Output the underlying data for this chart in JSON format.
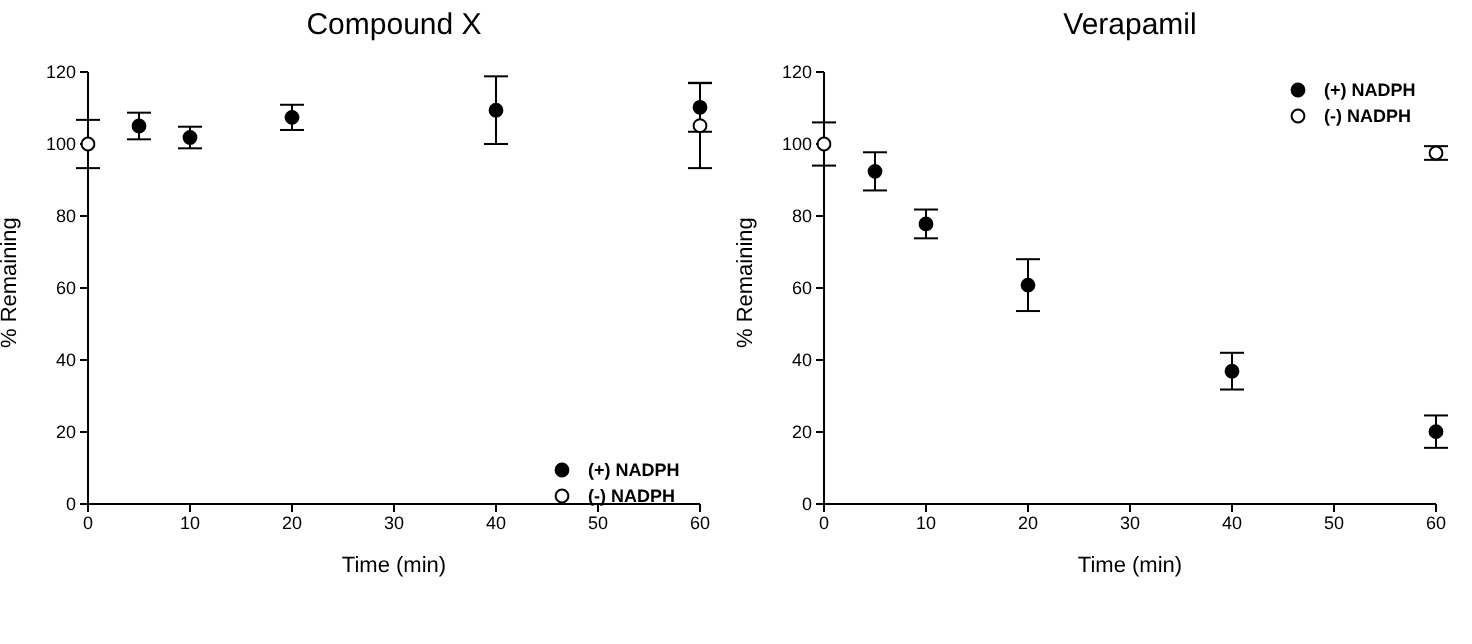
{
  "chart_data": [
    {
      "type": "scatter",
      "title": "Compound X",
      "xlabel": "Time (min)",
      "ylabel": "% Remaining",
      "x": [
        0,
        5,
        10,
        20,
        40,
        60
      ],
      "xlim": [
        0,
        60
      ],
      "xticks": [
        0,
        10,
        20,
        30,
        40,
        50,
        60
      ],
      "ylim": [
        0,
        120
      ],
      "yticks": [
        0,
        20,
        40,
        60,
        80,
        100,
        120
      ],
      "grid": false,
      "legend": "bottom right",
      "marker": "circle",
      "series": [
        {
          "name": "(+) NADPH",
          "color": "#000000",
          "values": [
            null,
            105,
            101.8,
            107.4,
            109.4,
            110.2
          ],
          "errors": [
            null,
            3.7,
            3,
            3.5,
            9.4,
            6.8
          ]
        },
        {
          "name": "(-) NADPH",
          "color": "#ffffff",
          "values": [
            100,
            null,
            null,
            null,
            null,
            105.1
          ],
          "errors": [
            6.7,
            null,
            null,
            null,
            null,
            11.8
          ]
        }
      ]
    },
    {
      "type": "scatter",
      "title": "Verapamil",
      "xlabel": "Time (min)",
      "ylabel": "% Remaining",
      "x": [
        0,
        5,
        10,
        20,
        40,
        60
      ],
      "xlim": [
        0,
        60
      ],
      "xticks": [
        0,
        10,
        20,
        30,
        40,
        50,
        60
      ],
      "ylim": [
        0,
        120
      ],
      "yticks": [
        0,
        20,
        40,
        60,
        80,
        100,
        120
      ],
      "grid": false,
      "legend": "top right",
      "marker": "circle",
      "series": [
        {
          "name": "(+) NADPH",
          "color": "#000000",
          "values": [
            null,
            92.4,
            77.8,
            60.8,
            36.9,
            20.1
          ],
          "errors": [
            null,
            5.3,
            4,
            7.2,
            5.1,
            4.5
          ]
        },
        {
          "name": "(-) NADPH",
          "color": "#ffffff",
          "values": [
            100,
            null,
            null,
            null,
            null,
            97.5
          ],
          "errors": [
            6,
            null,
            null,
            null,
            null,
            1.9
          ]
        }
      ]
    }
  ]
}
